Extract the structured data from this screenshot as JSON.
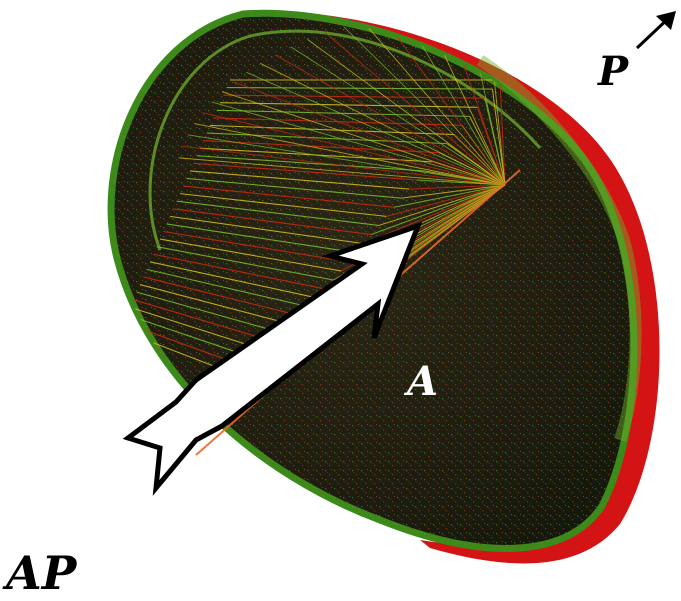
{
  "labels": {
    "p": "P",
    "a": "A",
    "ap": "AP"
  },
  "colors": {
    "background": "#ffffff",
    "dish_dark": "#1e1c10",
    "rim_green": "#3c8a1a",
    "rim_red": "#d41414",
    "ray_yellow": "#d6c21c",
    "ray_red": "#d02a10",
    "ray_green": "#7cc22a",
    "arrow_fill": "#ffffff",
    "arrow_stroke": "#000000"
  },
  "icons": {
    "incoming": "large-white-arrow-icon",
    "direction": "small-black-arrow-icon"
  }
}
